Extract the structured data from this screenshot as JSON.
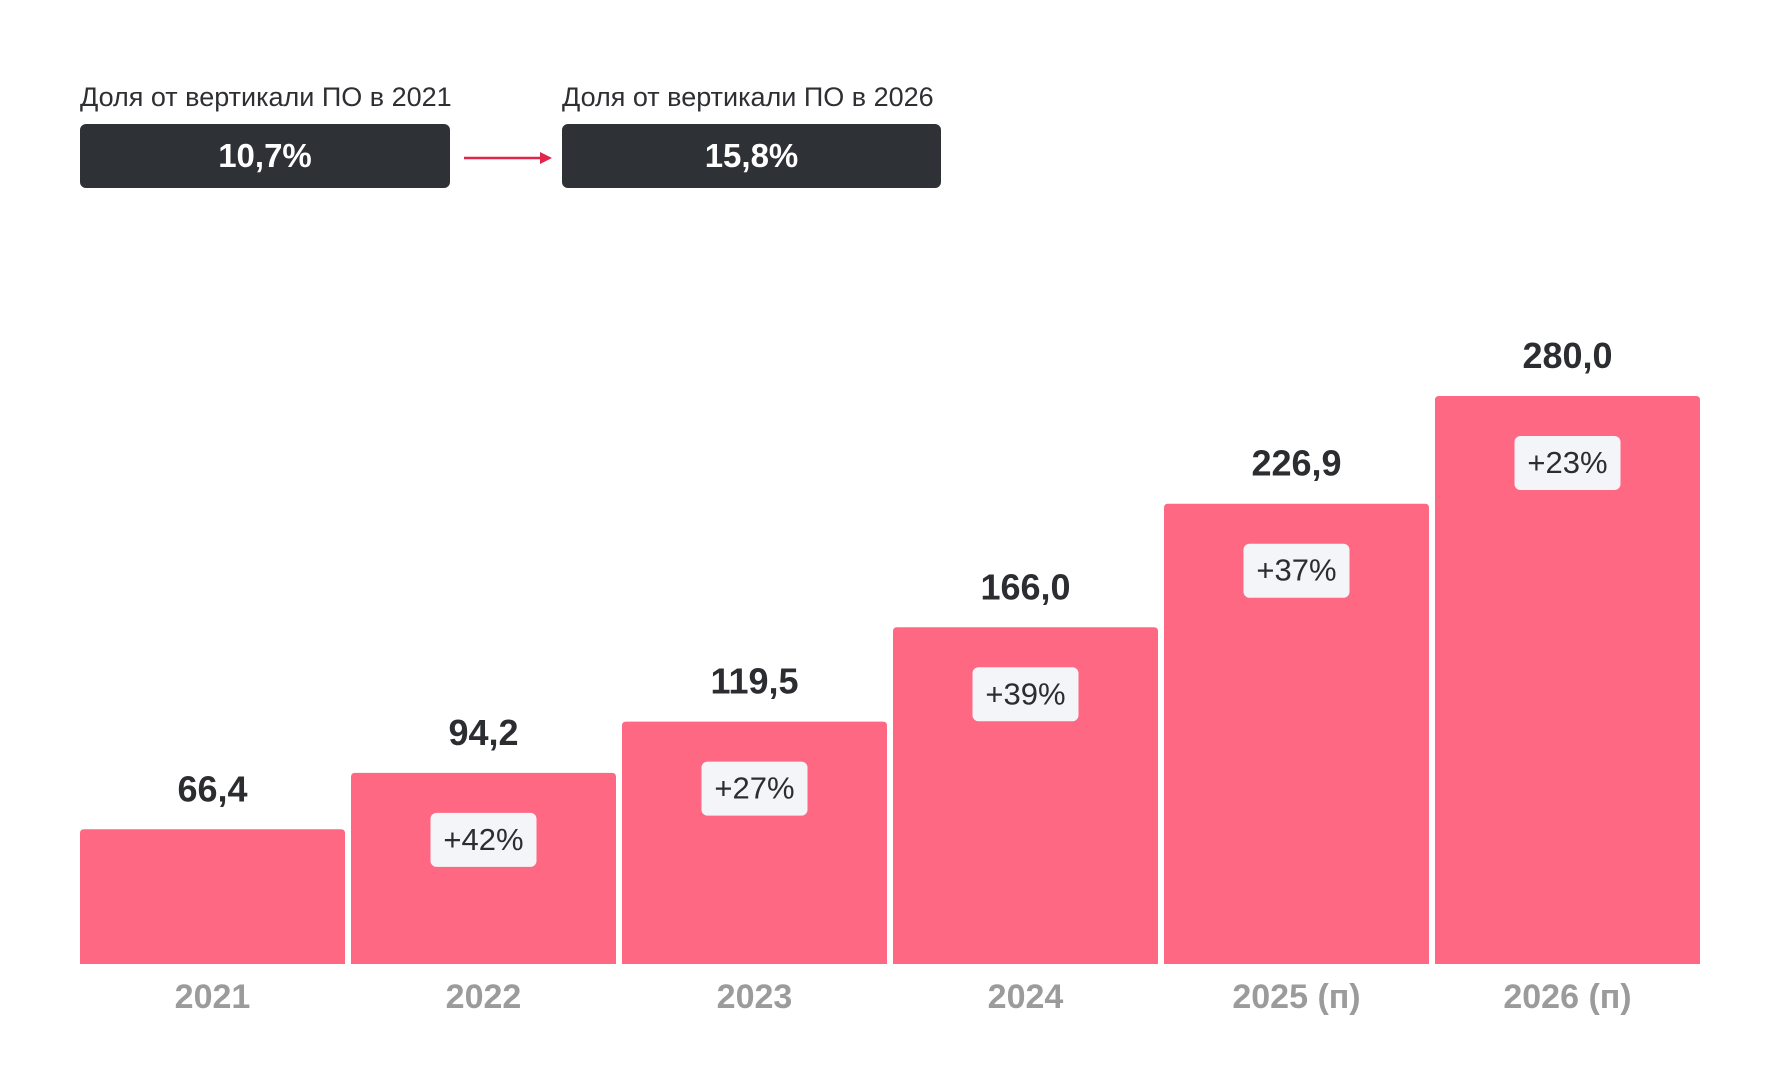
{
  "shares": {
    "start": {
      "label": "Доля от вертикали ПО в 2021",
      "value": "10,7%"
    },
    "end": {
      "label": "Доля от вертикали ПО в 2026",
      "value": "15,8%"
    }
  },
  "colors": {
    "bar": "#ff6883",
    "arrow": "#e2264b",
    "box": "#2e3135",
    "badge": "#f4f5f8"
  },
  "chart_data": {
    "type": "bar",
    "categories": [
      "2021",
      "2022",
      "2023",
      "2024",
      "2025 (п)",
      "2026 (п)"
    ],
    "values": [
      66.4,
      94.2,
      119.5,
      166.0,
      226.9,
      280.0
    ],
    "value_labels": [
      "66,4",
      "94,2",
      "119,5",
      "166,0",
      "226,9",
      "280,0"
    ],
    "growth_labels": [
      "",
      "+42%",
      "+27%",
      "+39%",
      "+37%",
      "+23%"
    ],
    "title": "",
    "xlabel": "",
    "ylabel": "",
    "ylim": [
      0,
      280
    ],
    "grid": false
  }
}
